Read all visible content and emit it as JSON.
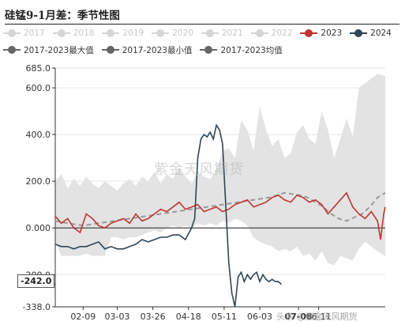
{
  "title": "硅锰9-1月差：季节性图",
  "legend": {
    "row1": [
      {
        "label": "2017",
        "color": "#d6d6d6",
        "dim": true
      },
      {
        "label": "2018",
        "color": "#d6d6d6",
        "dim": true
      },
      {
        "label": "2019",
        "color": "#d6d6d6",
        "dim": true
      },
      {
        "label": "2020",
        "color": "#d6d6d6",
        "dim": true
      },
      {
        "label": "2021",
        "color": "#d6d6d6",
        "dim": true
      },
      {
        "label": "2022",
        "color": "#d6d6d6",
        "dim": true
      },
      {
        "label": "2023",
        "color": "#c23531",
        "dim": false
      },
      {
        "label": "2024",
        "color": "#2f4554",
        "dim": false
      }
    ],
    "row2": [
      {
        "label": "2017-2023最大值",
        "color": "#666666",
        "dim": false
      },
      {
        "label": "2017-2023最小值",
        "color": "#666666",
        "dim": false
      },
      {
        "label": "2017-2023均值",
        "color": "#666666",
        "dim": false
      }
    ]
  },
  "watermark": "紫金天风期货",
  "footer_watermark": "头条 @紫金天风期货",
  "last_value_label": "-242.0",
  "colors": {
    "s2023": "#c23531",
    "s2024": "#2f4554",
    "band": "#e3e3e3",
    "mean": "#999999"
  },
  "chart_data": {
    "type": "line",
    "title": "硅锰9-1月差：季节性图",
    "xlabel": "",
    "ylabel": "",
    "ylim": [
      -338,
      685
    ],
    "y_ticks": [
      "685.0",
      "600.0",
      "400.0",
      "200.0",
      "0.000",
      "-200.0",
      "-338.0"
    ],
    "y_tick_values": [
      685,
      600,
      400,
      200,
      0,
      -200,
      -338
    ],
    "x_ticks": [
      "02-09",
      "03-03",
      "03-26",
      "04-18",
      "05-11",
      "06-03",
      "07-08",
      "06-11"
    ],
    "x_tick_days": [
      40,
      62,
      85,
      108,
      131,
      154,
      179,
      192
    ],
    "x_range": [
      22,
      235
    ],
    "band_max": {
      "x": [
        22,
        26,
        30,
        34,
        38,
        42,
        46,
        50,
        54,
        58,
        62,
        66,
        70,
        74,
        78,
        82,
        86,
        90,
        94,
        98,
        102,
        106,
        110,
        114,
        118,
        122,
        126,
        130,
        134,
        138,
        142,
        146,
        150,
        154,
        158,
        162,
        166,
        170,
        174,
        178,
        182,
        186,
        190,
        194,
        198,
        202,
        206,
        210,
        214,
        218,
        222,
        226,
        230,
        235
      ],
      "y": [
        200,
        230,
        170,
        210,
        180,
        220,
        190,
        170,
        200,
        180,
        160,
        190,
        210,
        180,
        220,
        200,
        240,
        190,
        230,
        210,
        260,
        220,
        190,
        240,
        220,
        210,
        250,
        330,
        340,
        300,
        460,
        420,
        330,
        520,
        420,
        350,
        380,
        300,
        320,
        410,
        440,
        380,
        360,
        500,
        420,
        300,
        380,
        470,
        390,
        600,
        620,
        640,
        660,
        650
      ]
    },
    "band_min": {
      "x": [
        22,
        26,
        30,
        34,
        38,
        42,
        46,
        50,
        54,
        58,
        62,
        66,
        70,
        74,
        78,
        82,
        86,
        90,
        94,
        98,
        102,
        106,
        110,
        114,
        118,
        122,
        126,
        130,
        134,
        138,
        142,
        146,
        150,
        154,
        158,
        162,
        166,
        170,
        174,
        178,
        182,
        186,
        190,
        194,
        198,
        202,
        206,
        210,
        214,
        218,
        222,
        226,
        230,
        235
      ],
      "y": [
        -60,
        -120,
        -120,
        -120,
        -120,
        -110,
        -120,
        -120,
        -120,
        -40,
        -40,
        -50,
        -40,
        -40,
        -30,
        -20,
        -10,
        -20,
        0,
        10,
        0,
        10,
        0,
        20,
        10,
        20,
        10,
        30,
        20,
        40,
        30,
        10,
        -40,
        -60,
        -70,
        -80,
        -100,
        -90,
        -100,
        -80,
        -120,
        -110,
        -140,
        -100,
        -150,
        -160,
        -120,
        -130,
        -140,
        -90,
        -60,
        -80,
        -100,
        -120
      ]
    },
    "series": [
      {
        "name": "2017-2023均值",
        "x": [
          22,
          30,
          40,
          50,
          60,
          70,
          80,
          90,
          100,
          110,
          120,
          130,
          140,
          150,
          160,
          165,
          170,
          175,
          180,
          185,
          190,
          195,
          200,
          205,
          210,
          215,
          220,
          225,
          230,
          235
        ],
        "y": [
          30,
          20,
          10,
          20,
          30,
          40,
          50,
          60,
          70,
          80,
          90,
          100,
          110,
          120,
          130,
          140,
          150,
          145,
          140,
          130,
          110,
          90,
          60,
          40,
          30,
          45,
          60,
          90,
          130,
          150
        ]
      },
      {
        "name": "2023",
        "x": [
          22,
          26,
          30,
          34,
          38,
          42,
          46,
          50,
          54,
          58,
          62,
          66,
          70,
          74,
          78,
          82,
          86,
          90,
          94,
          98,
          102,
          106,
          110,
          114,
          118,
          122,
          126,
          130,
          134,
          138,
          142,
          146,
          150,
          154,
          158,
          162,
          166,
          170,
          174,
          178,
          182,
          186,
          190,
          194,
          198,
          202,
          206,
          210,
          214,
          218,
          222,
          226,
          230,
          232,
          234,
          235
        ],
        "y": [
          50,
          20,
          40,
          0,
          -20,
          60,
          40,
          10,
          0,
          20,
          30,
          40,
          20,
          60,
          30,
          40,
          60,
          80,
          70,
          90,
          110,
          80,
          90,
          100,
          70,
          80,
          90,
          70,
          80,
          100,
          110,
          120,
          90,
          100,
          110,
          130,
          140,
          120,
          110,
          140,
          130,
          110,
          120,
          100,
          60,
          90,
          120,
          150,
          90,
          60,
          40,
          70,
          30,
          -50,
          60,
          90
        ]
      },
      {
        "name": "2024",
        "x": [
          22,
          26,
          30,
          34,
          38,
          42,
          46,
          50,
          54,
          58,
          62,
          66,
          70,
          74,
          78,
          82,
          86,
          90,
          94,
          98,
          102,
          106,
          110,
          112,
          114,
          116,
          118,
          120,
          122,
          124,
          126,
          128,
          130,
          132,
          134,
          136,
          138,
          140,
          142,
          144,
          146,
          148,
          150,
          152,
          154,
          156,
          158,
          160,
          162,
          164,
          166,
          168
        ],
        "y": [
          -70,
          -80,
          -80,
          -90,
          -80,
          -80,
          -70,
          -60,
          -90,
          -80,
          -90,
          -90,
          -80,
          -70,
          -50,
          -60,
          -50,
          -40,
          -40,
          -30,
          -30,
          -50,
          0,
          40,
          300,
          380,
          400,
          390,
          410,
          380,
          440,
          420,
          360,
          100,
          -150,
          -280,
          -338,
          -210,
          -190,
          -230,
          -200,
          -220,
          -200,
          -190,
          -230,
          -200,
          -220,
          -230,
          -220,
          -230,
          -230,
          -242
        ]
      }
    ]
  }
}
